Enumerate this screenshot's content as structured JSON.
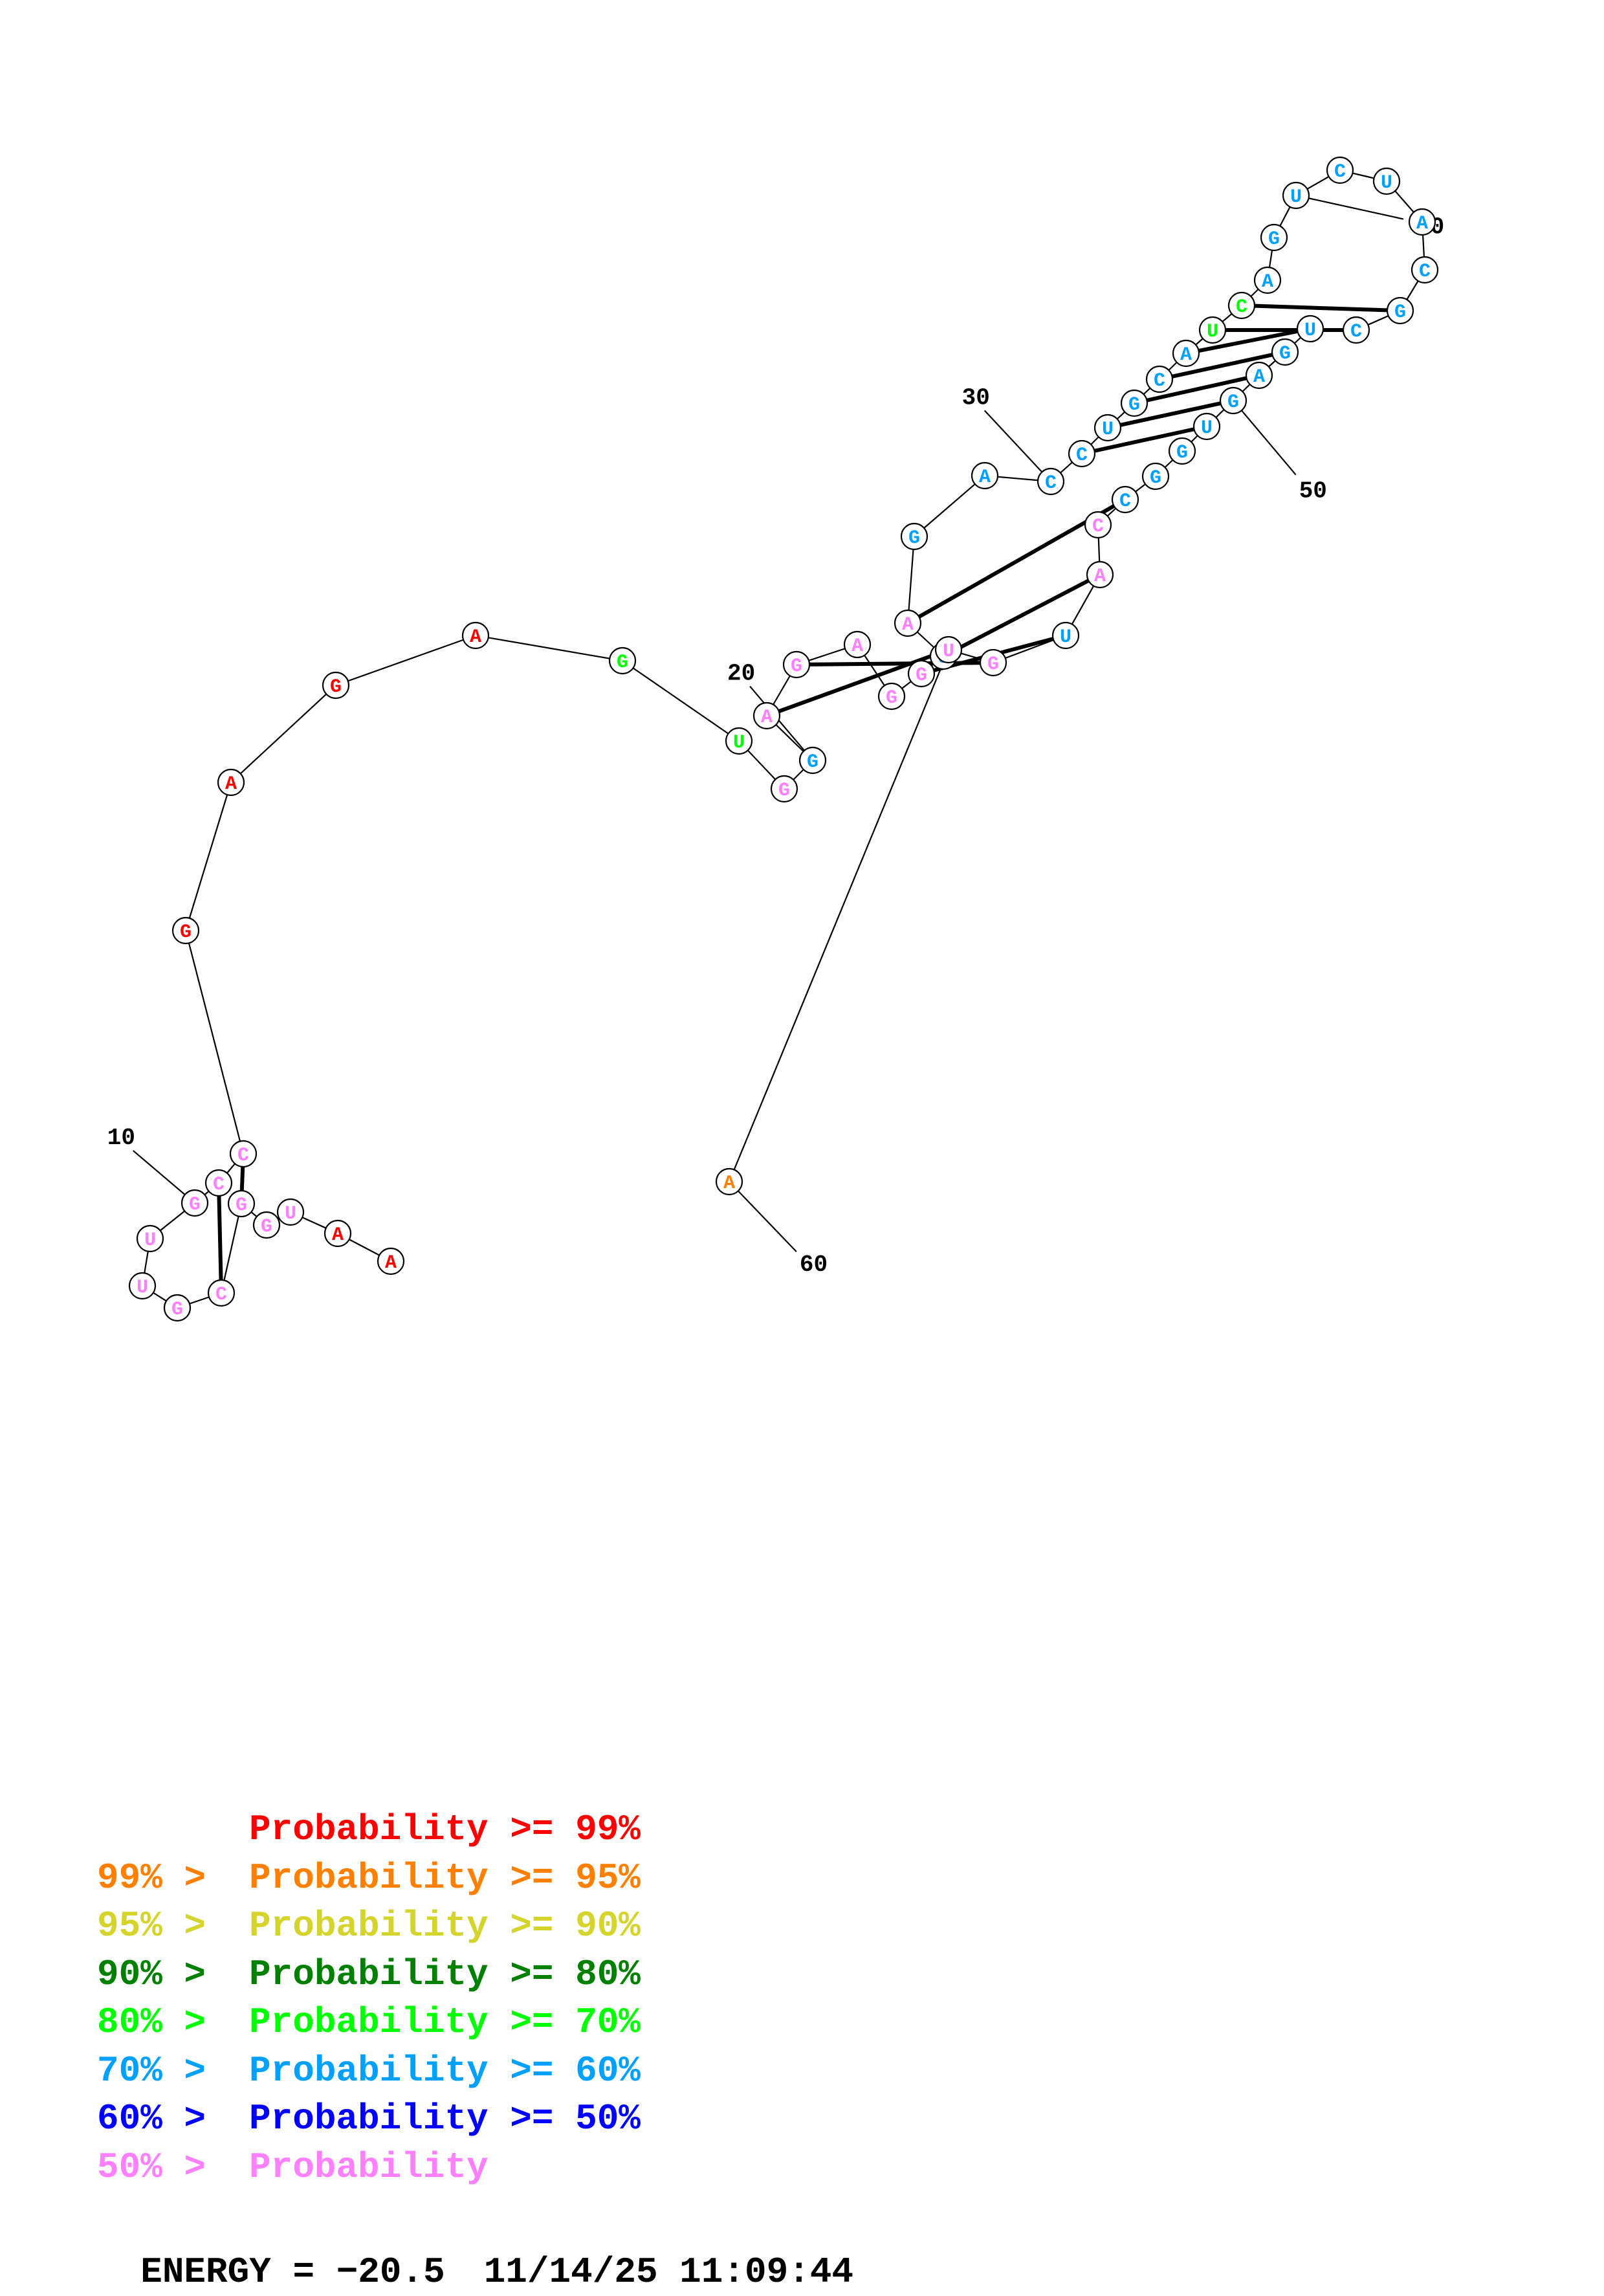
{
  "structure": {
    "sequence": "AAUGGCGUUGCCGAGAGUGGAGAGGCAGACCUGCAUCAGUCUACGCUGAGUGGCCAUGUA",
    "pairs": [
      [
        5,
        12
      ],
      [
        6,
        11
      ],
      [
        21,
        59
      ],
      [
        22,
        58
      ],
      [
        25,
        57
      ],
      [
        26,
        56
      ],
      [
        27,
        54
      ],
      [
        31,
        51
      ],
      [
        32,
        50
      ],
      [
        33,
        49
      ],
      [
        34,
        48
      ],
      [
        35,
        47
      ],
      [
        36,
        46
      ],
      [
        37,
        45
      ]
    ],
    "probability_class": [
      0,
      0,
      7,
      7,
      7,
      7,
      7,
      7,
      7,
      7,
      7,
      7,
      0,
      0,
      0,
      0,
      4,
      4,
      7,
      5,
      7,
      7,
      7,
      7,
      7,
      5,
      7,
      5,
      5,
      5,
      5,
      5,
      5,
      5,
      5,
      4,
      4,
      5,
      5,
      5,
      5,
      5,
      5,
      5,
      5,
      5,
      5,
      5,
      5,
      5,
      5,
      5,
      5,
      5,
      7,
      7,
      5,
      7,
      7,
      1
    ]
  },
  "position_labels": [
    "10",
    "20",
    "30",
    "40",
    "50",
    "60"
  ],
  "legend": [
    {
      "lhs": "",
      "rhs": "Probability >= 99%",
      "color": "#ff0000"
    },
    {
      "lhs": "99% >",
      "rhs": "Probability >= 95%",
      "color": "#ff8000"
    },
    {
      "lhs": "95% >",
      "rhs": "Probability >= 90%",
      "color": "#d4d42c"
    },
    {
      "lhs": "90% >",
      "rhs": "Probability >= 80%",
      "color": "#008000"
    },
    {
      "lhs": "80% >",
      "rhs": "Probability >= 70%",
      "color": "#00ff00"
    },
    {
      "lhs": "70% >",
      "rhs": "Probability >= 60%",
      "color": "#00a0ff"
    },
    {
      "lhs": "60% >",
      "rhs": "Probability >= 50%",
      "color": "#0000ff"
    },
    {
      "lhs": "50% >",
      "rhs": "Probability",
      "color": "#ff80ff"
    }
  ],
  "footer": {
    "energy": "ENERGY = −20.5",
    "timestamp": "11/14/25 11:09:44"
  }
}
